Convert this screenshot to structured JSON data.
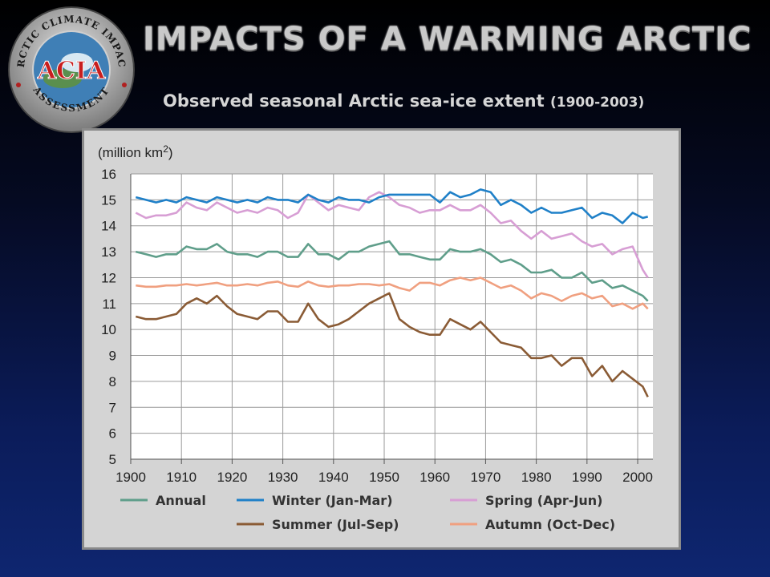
{
  "header": {
    "title": "IMPACTS OF A WARMING ARCTIC",
    "subtitle": "Observed seasonal Arctic sea-ice extent",
    "subtitle_years": "(1900-2003)"
  },
  "logo": {
    "text_top": "ARCTIC CLIMATE IMPACT",
    "text_bottom": "ASSESSMENT",
    "text_center": "ACIA",
    "icon": "acia-logo-globe"
  },
  "chart_data": {
    "type": "line",
    "ylabel": "(million km2)",
    "ylabel_main": "(million km",
    "ylabel_sup": "2",
    "ylabel_end": ")",
    "ylim": [
      5,
      16
    ],
    "xlim": [
      1900,
      2003
    ],
    "y_ticks": [
      "5",
      "6",
      "7",
      "8",
      "9",
      "10",
      "11",
      "12",
      "13",
      "14",
      "15",
      "16"
    ],
    "x_ticks": [
      "1900",
      "1910",
      "1920",
      "1930",
      "1940",
      "1950",
      "1960",
      "1970",
      "1980",
      "1990",
      "2000"
    ],
    "grid": true,
    "legend_position": "bottom",
    "x": [
      1901,
      1903,
      1905,
      1907,
      1909,
      1911,
      1913,
      1915,
      1917,
      1919,
      1921,
      1923,
      1925,
      1927,
      1929,
      1931,
      1933,
      1935,
      1937,
      1939,
      1941,
      1943,
      1945,
      1947,
      1949,
      1951,
      1953,
      1955,
      1957,
      1959,
      1961,
      1963,
      1965,
      1967,
      1969,
      1971,
      1973,
      1975,
      1977,
      1979,
      1981,
      1983,
      1985,
      1987,
      1989,
      1991,
      1993,
      1995,
      1997,
      1999,
      2001,
      2002
    ],
    "series": [
      {
        "name": "Annual",
        "color": "#5f9e8a",
        "values": [
          13.0,
          12.9,
          12.8,
          12.9,
          12.9,
          13.2,
          13.1,
          13.1,
          13.3,
          13.0,
          12.9,
          12.9,
          12.8,
          13.0,
          13.0,
          12.8,
          12.8,
          13.3,
          12.9,
          12.9,
          12.7,
          13.0,
          13.0,
          13.2,
          13.3,
          13.4,
          12.9,
          12.9,
          12.8,
          12.7,
          12.7,
          13.1,
          13.0,
          13.0,
          13.1,
          12.9,
          12.6,
          12.7,
          12.5,
          12.2,
          12.2,
          12.3,
          12.0,
          12.0,
          12.2,
          11.8,
          11.9,
          11.6,
          11.7,
          11.5,
          11.3,
          11.1
        ]
      },
      {
        "name": "Winter (Jan-Mar)",
        "color": "#1f80c8",
        "values": [
          15.1,
          15.0,
          14.9,
          15.0,
          14.9,
          15.1,
          15.0,
          14.9,
          15.1,
          15.0,
          14.9,
          15.0,
          14.9,
          15.1,
          15.0,
          15.0,
          14.9,
          15.2,
          15.0,
          14.9,
          15.1,
          15.0,
          15.0,
          14.9,
          15.1,
          15.2,
          15.2,
          15.2,
          15.2,
          15.2,
          14.9,
          15.3,
          15.1,
          15.2,
          15.4,
          15.3,
          14.8,
          15.0,
          14.8,
          14.5,
          14.7,
          14.5,
          14.5,
          14.6,
          14.7,
          14.3,
          14.5,
          14.4,
          14.1,
          14.5,
          14.3,
          14.35
        ]
      },
      {
        "name": "Spring (Apr-Jun)",
        "color": "#d79ed4",
        "values": [
          14.5,
          14.3,
          14.4,
          14.4,
          14.5,
          14.9,
          14.7,
          14.6,
          14.9,
          14.7,
          14.5,
          14.6,
          14.5,
          14.7,
          14.6,
          14.3,
          14.5,
          15.2,
          14.9,
          14.6,
          14.8,
          14.7,
          14.6,
          15.1,
          15.3,
          15.1,
          14.8,
          14.7,
          14.5,
          14.6,
          14.6,
          14.8,
          14.6,
          14.6,
          14.8,
          14.5,
          14.1,
          14.2,
          13.8,
          13.5,
          13.8,
          13.5,
          13.6,
          13.7,
          13.4,
          13.2,
          13.3,
          12.9,
          13.1,
          13.2,
          12.3,
          12.0
        ]
      },
      {
        "name": "Summer (Jul-Sep)",
        "color": "#8a5b35",
        "values": [
          10.5,
          10.4,
          10.4,
          10.5,
          10.6,
          11.0,
          11.2,
          11.0,
          11.3,
          10.9,
          10.6,
          10.5,
          10.4,
          10.7,
          10.7,
          10.3,
          10.3,
          11.0,
          10.4,
          10.1,
          10.2,
          10.4,
          10.7,
          11.0,
          11.2,
          11.4,
          10.4,
          10.1,
          9.9,
          9.8,
          9.8,
          10.4,
          10.2,
          10.0,
          10.3,
          9.9,
          9.5,
          9.4,
          9.3,
          8.9,
          8.9,
          9.0,
          8.6,
          8.9,
          8.9,
          8.2,
          8.6,
          8.0,
          8.4,
          8.1,
          7.8,
          7.4
        ]
      },
      {
        "name": "Autumn (Oct-Dec)",
        "color": "#f0a080",
        "values": [
          11.7,
          11.65,
          11.65,
          11.7,
          11.7,
          11.75,
          11.7,
          11.75,
          11.8,
          11.7,
          11.7,
          11.75,
          11.7,
          11.8,
          11.85,
          11.7,
          11.65,
          11.85,
          11.7,
          11.65,
          11.7,
          11.7,
          11.75,
          11.75,
          11.7,
          11.75,
          11.6,
          11.5,
          11.8,
          11.8,
          11.7,
          11.9,
          12.0,
          11.9,
          12.0,
          11.8,
          11.6,
          11.7,
          11.5,
          11.2,
          11.4,
          11.3,
          11.1,
          11.3,
          11.4,
          11.2,
          11.3,
          10.9,
          11.0,
          10.8,
          11.0,
          10.8
        ]
      }
    ],
    "legend": [
      {
        "label": "Annual",
        "color": "#5f9e8a"
      },
      {
        "label": "Winter (Jan-Mar)",
        "color": "#1f80c8"
      },
      {
        "label": "Spring (Apr-Jun)",
        "color": "#d79ed4"
      },
      {
        "label": "Summer (Jul-Sep)",
        "color": "#8a5b35"
      },
      {
        "label": "Autumn (Oct-Dec)",
        "color": "#f0a080"
      }
    ]
  }
}
